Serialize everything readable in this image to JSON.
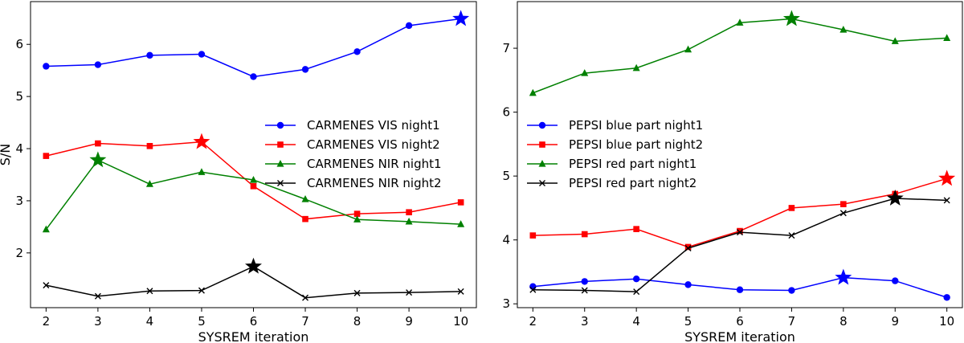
{
  "chart_data": [
    {
      "type": "line",
      "xlabel": "SYSREM iteration",
      "ylabel": "S/N",
      "x": [
        2,
        3,
        4,
        5,
        6,
        7,
        8,
        9,
        10
      ],
      "xlim": [
        1.7,
        10.3
      ],
      "ylim": [
        0.95,
        6.82
      ],
      "xticks": [
        "2",
        "3",
        "4",
        "5",
        "6",
        "7",
        "8",
        "9",
        "10"
      ],
      "yticks": [
        2,
        3,
        4,
        5,
        6
      ],
      "legend_position": "center-right",
      "series": [
        {
          "name": "CARMENES VIS night1",
          "color": "#0000ff",
          "marker": "circle",
          "values": [
            5.58,
            5.61,
            5.79,
            5.81,
            5.38,
            5.52,
            5.86,
            6.36,
            6.49
          ],
          "best_x": 10
        },
        {
          "name": "CARMENES VIS night2",
          "color": "#ff0000",
          "marker": "square",
          "values": [
            3.86,
            4.1,
            4.05,
            4.13,
            3.28,
            2.65,
            2.75,
            2.78,
            2.97
          ],
          "best_x": 5
        },
        {
          "name": "CARMENES NIR night1",
          "color": "#008000",
          "marker": "triangle",
          "values": [
            2.45,
            3.78,
            3.32,
            3.55,
            3.4,
            3.03,
            2.64,
            2.6,
            2.55
          ],
          "best_x": 3
        },
        {
          "name": "CARMENES NIR night2",
          "color": "#000000",
          "marker": "x",
          "values": [
            1.38,
            1.17,
            1.27,
            1.28,
            1.74,
            1.14,
            1.23,
            1.24,
            1.26
          ],
          "best_x": 6
        }
      ]
    },
    {
      "type": "line",
      "xlabel": "SYSREM iteration",
      "ylabel": "",
      "x": [
        2,
        3,
        4,
        5,
        6,
        7,
        8,
        9,
        10
      ],
      "xlim": [
        1.7,
        10.3
      ],
      "ylim": [
        2.94,
        7.73
      ],
      "xticks": [
        "2",
        "3",
        "4",
        "5",
        "6",
        "7",
        "8",
        "9",
        "10"
      ],
      "yticks": [
        3,
        4,
        5,
        6,
        7
      ],
      "legend_position": "center-left",
      "series": [
        {
          "name": "PEPSI blue part night1",
          "color": "#0000ff",
          "marker": "circle",
          "values": [
            3.27,
            3.35,
            3.39,
            3.3,
            3.22,
            3.21,
            3.41,
            3.36,
            3.1
          ],
          "best_x": 8
        },
        {
          "name": "PEPSI blue part night2",
          "color": "#ff0000",
          "marker": "square",
          "values": [
            4.07,
            4.09,
            4.17,
            3.89,
            4.14,
            4.5,
            4.56,
            4.72,
            4.96
          ],
          "best_x": 10
        },
        {
          "name": "PEPSI red part night1",
          "color": "#008000",
          "marker": "triangle",
          "values": [
            6.3,
            6.61,
            6.69,
            6.98,
            7.4,
            7.46,
            7.29,
            7.11,
            7.16
          ],
          "best_x": 7
        },
        {
          "name": "PEPSI red part night2",
          "color": "#000000",
          "marker": "x",
          "values": [
            3.22,
            3.21,
            3.19,
            3.87,
            4.12,
            4.07,
            4.42,
            4.65,
            4.62
          ],
          "best_x": 9
        }
      ]
    }
  ]
}
